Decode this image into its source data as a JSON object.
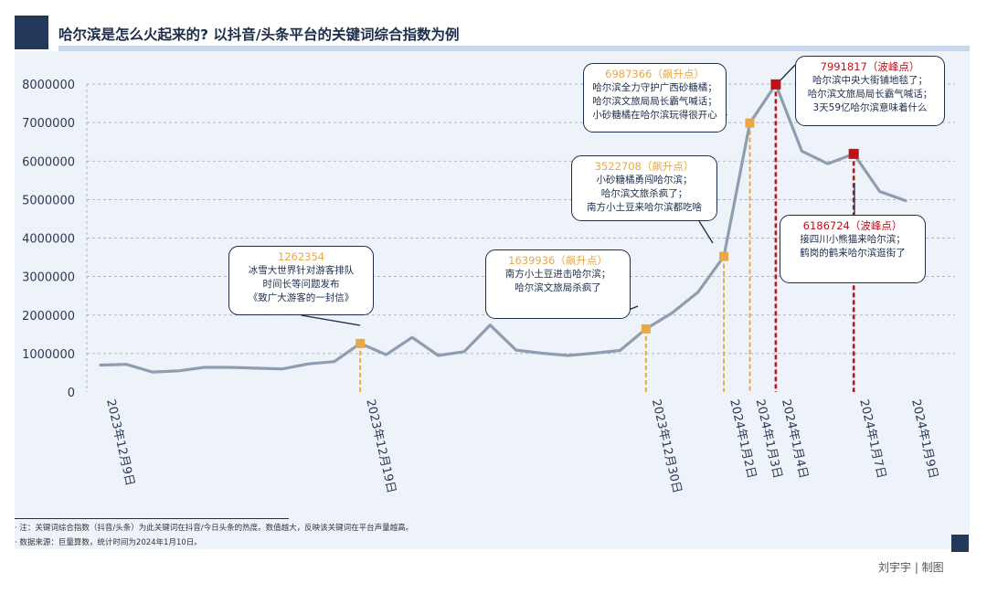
{
  "title": "哈尔滨是怎么火起来的? 以抖音/头条平台的关键词综合指数为例",
  "notes": [
    "· 注：关键词综合指数（抖音/头条）为此关键词在抖音/今日头条的热度。数值越大，反映该关键词在平台声量越高。",
    "· 数据来源：巨量算数，统计时间为2024年1月10日。"
  ],
  "author": "刘宇宇 | 制图",
  "colors": {
    "line": "#8f9db0",
    "rise": "#e8a845",
    "peak": "#c0101a",
    "navy": "#22395c",
    "background": "#eef3f9"
  },
  "chart_data": {
    "type": "line",
    "ylim": [
      0,
      8000000
    ],
    "yticks": [
      "0",
      "1000000",
      "2000000",
      "3000000",
      "4000000",
      "5000000",
      "6000000",
      "7000000",
      "8000000"
    ],
    "grid": true,
    "xtick_labels": [
      "2023年12月9日",
      "2023年12月19日",
      "2023年12月30日",
      "2024年1月2日",
      "2024年1月3日",
      "2024年1月4日",
      "2024年1月7日",
      "2024年1月9日"
    ],
    "xtick_dates": [
      "2023-12-09",
      "2023-12-19",
      "2023-12-30",
      "2024-01-02",
      "2024-01-03",
      "2024-01-04",
      "2024-01-07",
      "2024-01-09"
    ],
    "series": [
      {
        "dates": [
          "2023-12-09",
          "2023-12-10",
          "2023-12-11",
          "2023-12-12",
          "2023-12-13",
          "2023-12-14",
          "2023-12-15",
          "2023-12-16",
          "2023-12-17",
          "2023-12-18",
          "2023-12-19",
          "2023-12-20",
          "2023-12-21",
          "2023-12-22",
          "2023-12-23",
          "2023-12-24",
          "2023-12-25",
          "2023-12-26",
          "2023-12-27",
          "2023-12-28",
          "2023-12-29",
          "2023-12-30",
          "2023-12-31",
          "2024-01-01",
          "2024-01-02",
          "2024-01-03",
          "2024-01-04",
          "2024-01-05",
          "2024-01-06",
          "2024-01-07",
          "2024-01-08",
          "2024-01-09"
        ],
        "values": [
          700000,
          720000,
          520000,
          550000,
          640000,
          640000,
          620000,
          600000,
          730000,
          790000,
          1262354,
          970000,
          1420000,
          950000,
          1050000,
          1740000,
          1090000,
          1010000,
          950000,
          1010000,
          1080000,
          1639936,
          2050000,
          2590000,
          3522708,
          6987366,
          7991817,
          6260000,
          5930000,
          6186724,
          5210000,
          4970000
        ]
      }
    ],
    "annotations": [
      {
        "date": "2023-12-19",
        "value": 1262354,
        "kind": "rise",
        "head": "1262354",
        "lines": [
          "冰雪大世界针对游客排队",
          "时间长等问题发布",
          "《致广大游客的一封信》"
        ]
      },
      {
        "date": "2023-12-30",
        "value": 1639936,
        "kind": "rise",
        "head": "1639936（飙升点）",
        "lines": [
          "南方小土豆进击哈尔滨；",
          "哈尔滨文旅局杀疯了"
        ]
      },
      {
        "date": "2024-01-02",
        "value": 3522708,
        "kind": "rise",
        "head": "3522708（飙升点）",
        "lines": [
          "小砂糖橘勇闯哈尔滨；",
          "哈尔滨文旅杀疯了；",
          "南方小土豆来哈尔滨都吃啥"
        ]
      },
      {
        "date": "2024-01-03",
        "value": 6987366,
        "kind": "rise",
        "head": "6987366（飙升点）",
        "lines": [
          "哈尔滨全力守护广西砂糖橘；",
          "哈尔滨文旅局局长霸气喊话；",
          "小砂糖橘在哈尔滨玩得很开心"
        ]
      },
      {
        "date": "2024-01-04",
        "value": 7991817,
        "kind": "peak",
        "head": "7991817（波峰点）",
        "lines": [
          "哈尔滨中央大街铺地毯了；",
          "哈尔滨文旅局局长霸气喊话；",
          "3天59亿哈尔滨意味着什么"
        ]
      },
      {
        "date": "2024-01-07",
        "value": 6186724,
        "kind": "peak",
        "head": "6186724（波峰点）",
        "lines": [
          "接四川小熊猫来哈尔滨；",
          "鹤岗的鹤来哈尔滨逛街了"
        ]
      }
    ]
  }
}
